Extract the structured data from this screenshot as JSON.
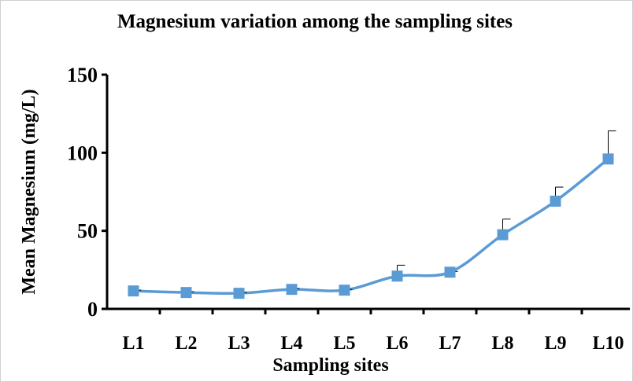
{
  "chart_data": {
    "type": "line",
    "title": "Magnesium variation among the sampling sites",
    "x_label": "Sampling sites",
    "y_label": "Mean Magnesium (mg/L)",
    "categories": [
      "L1",
      "L2",
      "L3",
      "L4",
      "L5",
      "L6",
      "L7",
      "L8",
      "L9",
      "L10"
    ],
    "series": [
      {
        "name": "Mean Magnesium",
        "color": "#5b9bd5",
        "values": [
          11.5,
          10.5,
          10,
          12.5,
          12,
          21,
          23.5,
          47.5,
          69,
          96
        ],
        "errors": [
          0.5,
          0.5,
          0.5,
          0.5,
          0.5,
          7,
          0.5,
          10,
          9,
          18
        ]
      }
    ],
    "ylim": [
      0,
      150
    ],
    "yticks": [
      0,
      50,
      100,
      150
    ]
  }
}
